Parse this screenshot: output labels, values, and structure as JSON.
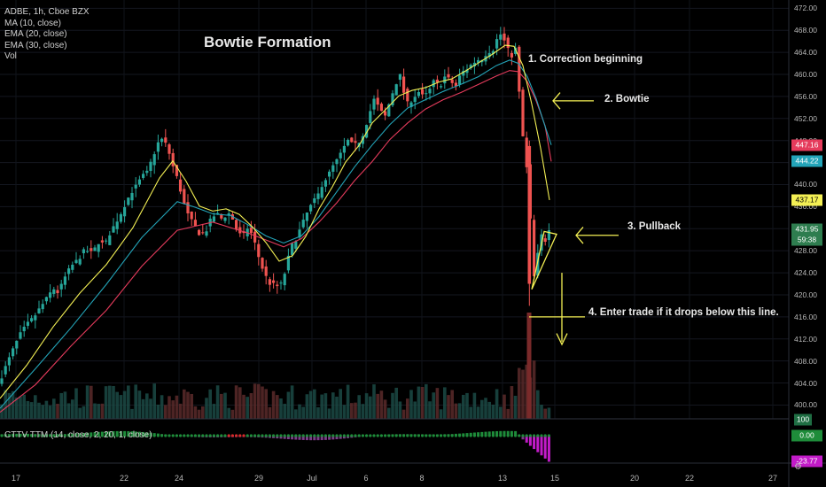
{
  "legend": {
    "symbol": "ADBE, 1h, Cboe BZX",
    "ma": "MA (10, close)",
    "ema20": "EMA (20, close)",
    "ema30": "EMA (30, close)",
    "vol": "Vol"
  },
  "title": "Bowtie Formation",
  "annotations": {
    "a1": "1. Correction beginning",
    "a2": "2. Bowtie",
    "a3": "3. Pullback",
    "a4": "4. Enter trade if it drops below this line."
  },
  "oscillator_label": "CTTV TTM (14, close, 2, 20, 1, close)",
  "price_tags": [
    {
      "value": "447.16",
      "color": "#e53b5c"
    },
    {
      "value": "444.22",
      "color": "#23a4b8"
    },
    {
      "value": "437.17",
      "color": "#f4f054"
    },
    {
      "value": "431.95",
      "color": "#2e7d4f"
    },
    {
      "value": "59:38",
      "color": "#2e7d4f"
    }
  ],
  "osc_tags": [
    {
      "value": "0.00",
      "color": "#1e8c3a"
    },
    {
      "value": "-23.77",
      "color": "#c21bc8"
    }
  ],
  "volume_tag": "100",
  "corner_icon": "settings-gear-icon",
  "chart_data": {
    "type": "candlestick",
    "symbol": "ADBE",
    "interval": "1h",
    "y_ticks": [
      400,
      404,
      408,
      412,
      416,
      420,
      424,
      428,
      432,
      436,
      440,
      444,
      448,
      452,
      456,
      460,
      464,
      468,
      472
    ],
    "y_tick_labels": [
      "400.00",
      "404.00",
      "408.00",
      "412.00",
      "416.00",
      "420.00",
      "424.00",
      "428.00",
      "432.00",
      "436.00",
      "440.00",
      "444.00",
      "448.00",
      "452.00",
      "456.00",
      "460.00",
      "464.00",
      "468.00",
      "472.00"
    ],
    "ylim": [
      397.5,
      473.5
    ],
    "x_tick_labels": [
      "17",
      "22",
      "24",
      "29",
      "Jul",
      "6",
      "8",
      "13",
      "15",
      "20",
      "22",
      "27"
    ],
    "close_path": [
      [
        0,
        404.5
      ],
      [
        6,
        406.8
      ],
      [
        14,
        409.8
      ],
      [
        22,
        412.6
      ],
      [
        30,
        414.5
      ],
      [
        38,
        415.9
      ],
      [
        46,
        417.8
      ],
      [
        54,
        419.6
      ],
      [
        60,
        421.2
      ],
      [
        66,
        420.3
      ],
      [
        72,
        422.8
      ],
      [
        80,
        425.1
      ],
      [
        88,
        426.4
      ],
      [
        96,
        428.2
      ],
      [
        104,
        427.5
      ],
      [
        112,
        429.8
      ],
      [
        118,
        428.9
      ],
      [
        124,
        431.2
      ],
      [
        130,
        432.9
      ],
      [
        136,
        434.7
      ],
      [
        142,
        436.8
      ],
      [
        148,
        438.6
      ],
      [
        154,
        439.8
      ],
      [
        160,
        441.4
      ],
      [
        166,
        442.2
      ],
      [
        172,
        444.8
      ],
      [
        178,
        447.5
      ],
      [
        184,
        448.4
      ],
      [
        190,
        446.2
      ],
      [
        196,
        442.8
      ],
      [
        202,
        440.2
      ],
      [
        206,
        437.2
      ],
      [
        210,
        435.4
      ],
      [
        214,
        433.6
      ],
      [
        218,
        433.1
      ],
      [
        222,
        431.8
      ],
      [
        226,
        430.9
      ],
      [
        232,
        431.4
      ],
      [
        238,
        433.7
      ],
      [
        244,
        434.8
      ],
      [
        248,
        434.2
      ],
      [
        252,
        433.4
      ],
      [
        256,
        435.2
      ],
      [
        262,
        433.9
      ],
      [
        268,
        431.3
      ],
      [
        274,
        430.5
      ],
      [
        280,
        432.4
      ],
      [
        286,
        430.2
      ],
      [
        292,
        426.8
      ],
      [
        298,
        423.9
      ],
      [
        304,
        422.1
      ],
      [
        310,
        421.7
      ],
      [
        316,
        421.4
      ],
      [
        322,
        424.3
      ],
      [
        328,
        428.6
      ],
      [
        334,
        430.2
      ],
      [
        340,
        432.4
      ],
      [
        346,
        434.7
      ],
      [
        352,
        436.5
      ],
      [
        358,
        437.8
      ],
      [
        364,
        440.3
      ],
      [
        370,
        441.6
      ],
      [
        376,
        443.4
      ],
      [
        382,
        444.8
      ],
      [
        388,
        446.7
      ],
      [
        394,
        448.3
      ],
      [
        398,
        446.9
      ],
      [
        404,
        447.5
      ],
      [
        410,
        449.3
      ],
      [
        416,
        452.5
      ],
      [
        422,
        455.4
      ],
      [
        428,
        453.8
      ],
      [
        434,
        452.1
      ],
      [
        440,
        455.2
      ],
      [
        446,
        458.2
      ],
      [
        452,
        459.9
      ],
      [
        456,
        456.4
      ],
      [
        460,
        454.6
      ],
      [
        466,
        455.7
      ],
      [
        472,
        456.9
      ],
      [
        478,
        455.8
      ],
      [
        484,
        456.9
      ],
      [
        490,
        458.9
      ],
      [
        496,
        457.8
      ],
      [
        502,
        459.6
      ],
      [
        508,
        458.9
      ],
      [
        514,
        457.7
      ],
      [
        520,
        460.2
      ],
      [
        526,
        460.9
      ],
      [
        532,
        461.8
      ],
      [
        538,
        462.6
      ],
      [
        544,
        462.9
      ],
      [
        550,
        464.1
      ],
      [
        556,
        464.4
      ],
      [
        562,
        466.9
      ],
      [
        566,
        467.4
      ],
      [
        570,
        465.6
      ],
      [
        574,
        464.1
      ],
      [
        578,
        463.3
      ],
      [
        582,
        464.8
      ],
      [
        586,
        456.2
      ],
      [
        589,
        449.3
      ],
      [
        592,
        446.5
      ],
      [
        595,
        441.8
      ],
      [
        597,
        438.4
      ],
      [
        599,
        431.3
      ],
      [
        601,
        421.2
      ],
      [
        603,
        423.8
      ],
      [
        605,
        426.4
      ],
      [
        608,
        428.2
      ],
      [
        611,
        430.6
      ],
      [
        614,
        428.9
      ],
      [
        617,
        431.3
      ],
      [
        621,
        431.9
      ]
    ],
    "ma10_path": [
      [
        0,
        401.2
      ],
      [
        30,
        407.2
      ],
      [
        60,
        414.2
      ],
      [
        90,
        420.3
      ],
      [
        120,
        425.5
      ],
      [
        150,
        432.2
      ],
      [
        180,
        441.2
      ],
      [
        195,
        444.3
      ],
      [
        210,
        440.6
      ],
      [
        225,
        436.1
      ],
      [
        240,
        435.2
      ],
      [
        255,
        435.6
      ],
      [
        270,
        434.6
      ],
      [
        285,
        432.3
      ],
      [
        300,
        429.5
      ],
      [
        315,
        426.1
      ],
      [
        330,
        427.1
      ],
      [
        345,
        430.6
      ],
      [
        360,
        435.6
      ],
      [
        375,
        439.6
      ],
      [
        390,
        444.1
      ],
      [
        405,
        447.1
      ],
      [
        420,
        451.2
      ],
      [
        435,
        453.6
      ],
      [
        450,
        456.1
      ],
      [
        465,
        457.1
      ],
      [
        480,
        457.6
      ],
      [
        495,
        458.6
      ],
      [
        510,
        459.2
      ],
      [
        525,
        460.6
      ],
      [
        540,
        462.1
      ],
      [
        555,
        463.6
      ],
      [
        570,
        465.3
      ],
      [
        580,
        465.1
      ],
      [
        590,
        461.6
      ],
      [
        600,
        454.6
      ],
      [
        610,
        446.6
      ],
      [
        620,
        437.2
      ]
    ],
    "ema20_path": [
      [
        0,
        399.4
      ],
      [
        40,
        406.6
      ],
      [
        80,
        414.0
      ],
      [
        120,
        421.9
      ],
      [
        160,
        430.4
      ],
      [
        200,
        436.9
      ],
      [
        220,
        435.9
      ],
      [
        240,
        434.7
      ],
      [
        260,
        434.4
      ],
      [
        280,
        432.7
      ],
      [
        300,
        430.7
      ],
      [
        320,
        429.4
      ],
      [
        340,
        430.7
      ],
      [
        360,
        434.2
      ],
      [
        380,
        438.7
      ],
      [
        400,
        443.2
      ],
      [
        420,
        447.2
      ],
      [
        440,
        450.9
      ],
      [
        460,
        453.9
      ],
      [
        480,
        455.4
      ],
      [
        500,
        456.9
      ],
      [
        520,
        458.2
      ],
      [
        540,
        459.6
      ],
      [
        560,
        461.6
      ],
      [
        575,
        462.6
      ],
      [
        585,
        462.0
      ],
      [
        595,
        459.6
      ],
      [
        605,
        455.6
      ],
      [
        615,
        450.6
      ],
      [
        622,
        447.2
      ]
    ],
    "ema30_path": [
      [
        0,
        398.7
      ],
      [
        40,
        403.7
      ],
      [
        80,
        410.7
      ],
      [
        120,
        417.2
      ],
      [
        160,
        425.2
      ],
      [
        200,
        431.7
      ],
      [
        240,
        433.2
      ],
      [
        280,
        431.2
      ],
      [
        320,
        428.7
      ],
      [
        340,
        430.2
      ],
      [
        360,
        433.2
      ],
      [
        380,
        436.7
      ],
      [
        400,
        440.7
      ],
      [
        420,
        444.2
      ],
      [
        440,
        448.2
      ],
      [
        460,
        451.2
      ],
      [
        480,
        453.7
      ],
      [
        500,
        455.4
      ],
      [
        520,
        456.7
      ],
      [
        540,
        458.2
      ],
      [
        560,
        459.7
      ],
      [
        575,
        460.7
      ],
      [
        585,
        460.5
      ],
      [
        595,
        458.7
      ],
      [
        605,
        455.2
      ],
      [
        615,
        450.7
      ],
      [
        622,
        444.2
      ]
    ],
    "pullback_zone": {
      "low": 420.5,
      "high": 431.0
    },
    "entry_line": 416.0
  }
}
